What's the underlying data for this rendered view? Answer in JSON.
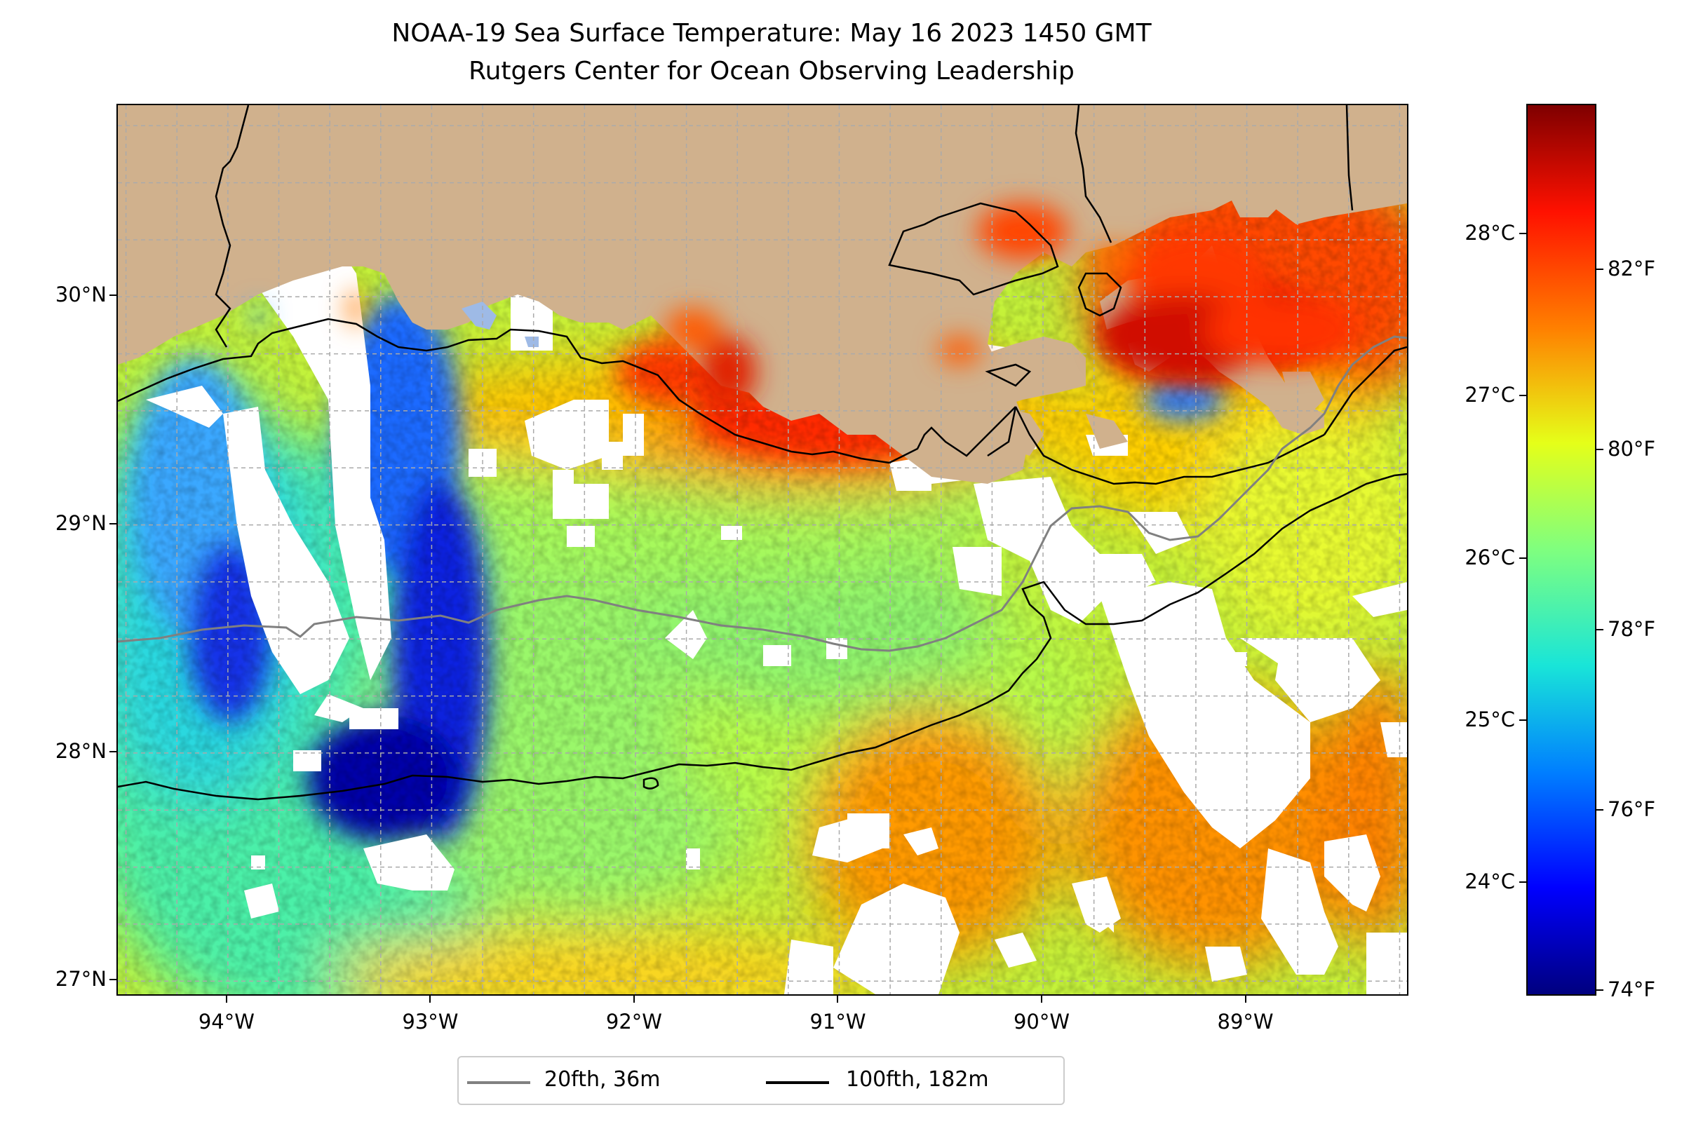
{
  "title": {
    "line1": "NOAA-19 Sea Surface Temperature: May 16 2023 1450 GMT",
    "line2": "Rutgers Center for Ocean Observing Leadership"
  },
  "map": {
    "lat_range": [
      26.93,
      30.84
    ],
    "lon_range": [
      -94.54,
      -88.2
    ],
    "lat_ticks": [
      {
        "value": 30,
        "label": "30°N"
      },
      {
        "value": 29,
        "label": "29°N"
      },
      {
        "value": 28,
        "label": "28°N"
      },
      {
        "value": 27,
        "label": "27°N"
      }
    ],
    "lon_ticks": [
      {
        "value": -94,
        "label": "94°W"
      },
      {
        "value": -93,
        "label": "93°W"
      },
      {
        "value": -92,
        "label": "92°W"
      },
      {
        "value": -91,
        "label": "91°W"
      },
      {
        "value": -90,
        "label": "90°W"
      },
      {
        "value": -89,
        "label": "89°W"
      }
    ],
    "grid": "dashed",
    "colors": {
      "land": "#D0B18D",
      "cloud": "#FFFFFF",
      "lake": "#9EBAE6"
    }
  },
  "colorbar": {
    "colormap": "jet",
    "range_c": [
      23.3,
      28.8
    ],
    "celsius_ticks": [
      {
        "value": 28,
        "label": "28°C"
      },
      {
        "value": 27,
        "label": "27°C"
      },
      {
        "value": 26,
        "label": "26°C"
      },
      {
        "value": 25,
        "label": "25°C"
      },
      {
        "value": 24,
        "label": "24°C"
      }
    ],
    "fahrenheit_ticks": [
      {
        "value": 82,
        "label": "82°F"
      },
      {
        "value": 80,
        "label": "80°F"
      },
      {
        "value": 78,
        "label": "78°F"
      },
      {
        "value": 76,
        "label": "76°F"
      },
      {
        "value": 74,
        "label": "74°F"
      }
    ]
  },
  "legend": {
    "placement": "below",
    "items": [
      {
        "label": "20fth, 36m",
        "color": "#808080"
      },
      {
        "label": "100fth, 182m",
        "color": "#000000"
      }
    ]
  }
}
